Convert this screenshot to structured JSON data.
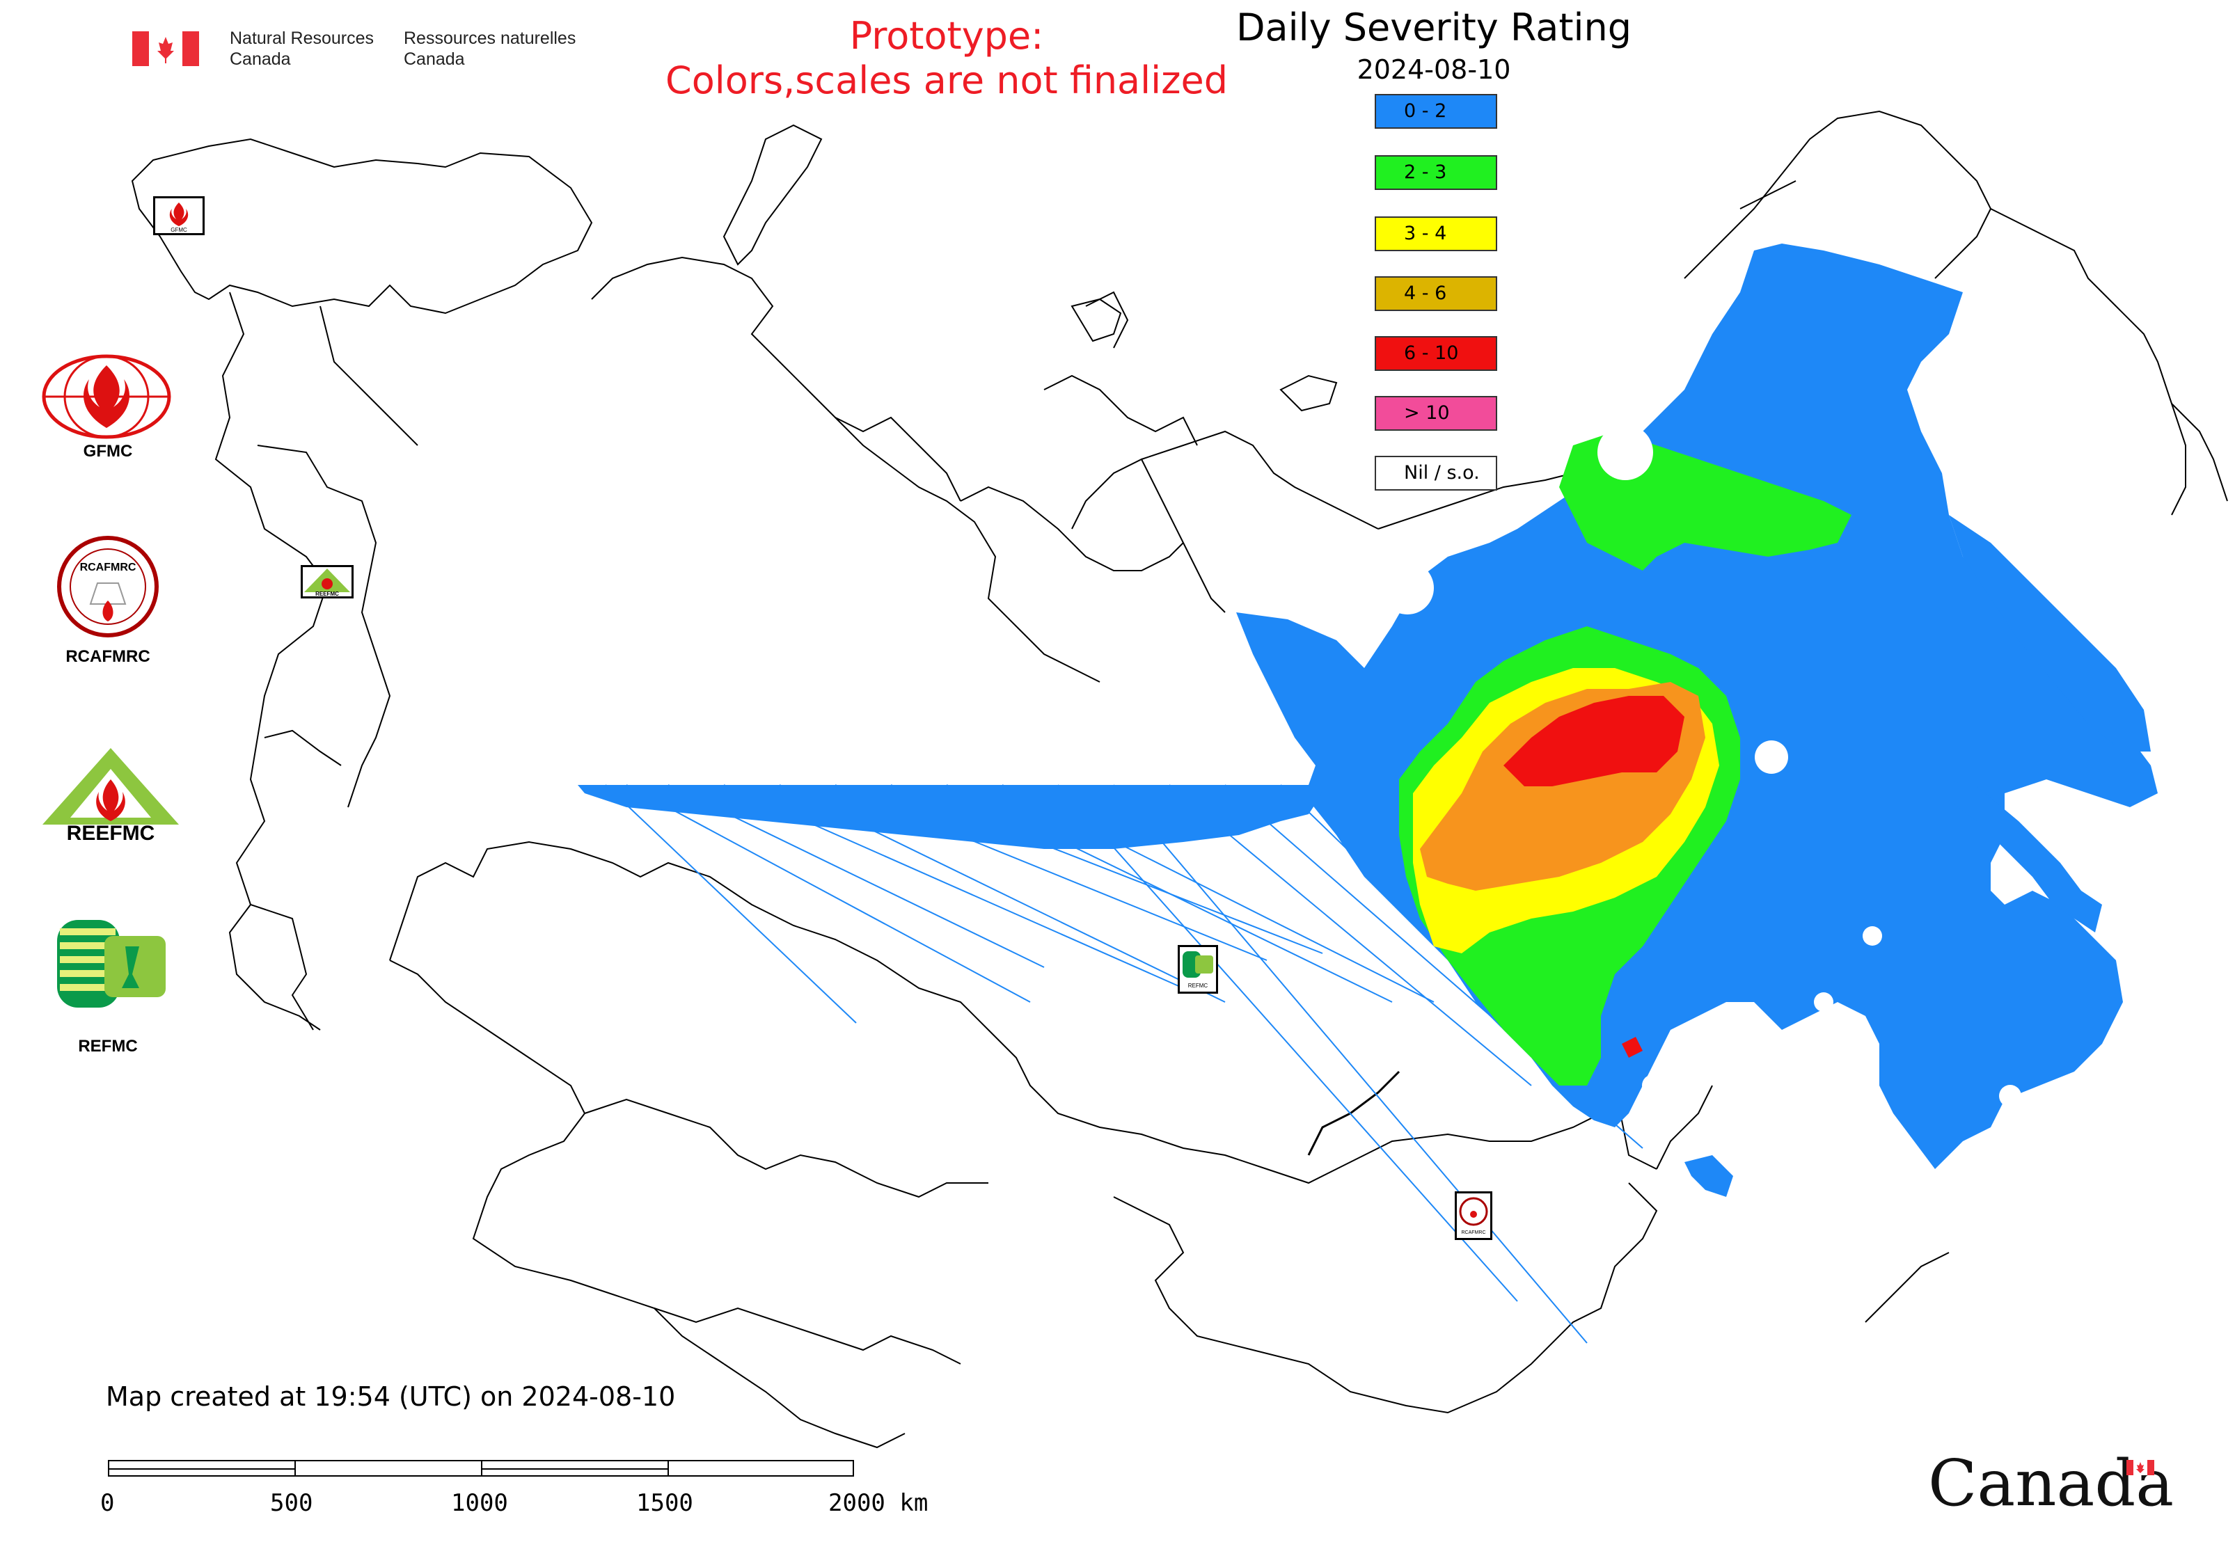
{
  "header": {
    "org_en_line1": "Natural Resources",
    "org_en_line2": "Canada",
    "org_fr_line1": "Ressources naturelles",
    "org_fr_line2": "Canada",
    "prototype_line1": "Prototype:",
    "prototype_line2": "Colors,scales are not finalized"
  },
  "map": {
    "title": "Daily Severity Rating",
    "date": "2024-08-10",
    "legend": [
      {
        "label": "0 - 2",
        "color": "#1e88f7"
      },
      {
        "label": "2 - 3",
        "color": "#20f020"
      },
      {
        "label": "3 - 4",
        "color": "#ffff00"
      },
      {
        "label": "4 - 6",
        "color": "#dcb400"
      },
      {
        "label": "6 - 10",
        "color": "#f01010"
      },
      {
        "label": "> 10",
        "color": "#f24c9a"
      },
      {
        "label": "Nil / s.o.",
        "color": "#ffffff"
      }
    ],
    "colors": {
      "orange": "#f7941d",
      "blue": "#1e88f7",
      "green": "#20f020",
      "yellow": "#ffff00",
      "red": "#f01010"
    }
  },
  "logos": {
    "gfmc": "GFMC",
    "rcafmrc": "RCAFMRC",
    "reefmc": "REEFMC",
    "refmc": "REFMC",
    "reefmc_badge": "REEFMC",
    "refmc_badge": "REFMC",
    "rcafmrc_badge": "RCAFMRC",
    "gfmc_badge": "GFMC"
  },
  "footer": {
    "credit": "Map created at 19:54 (UTC) on 2024-08-10",
    "scale_labels": [
      "0",
      "500",
      "1000",
      "1500",
      "2000 km"
    ],
    "canada_wordmark": "Canada"
  }
}
